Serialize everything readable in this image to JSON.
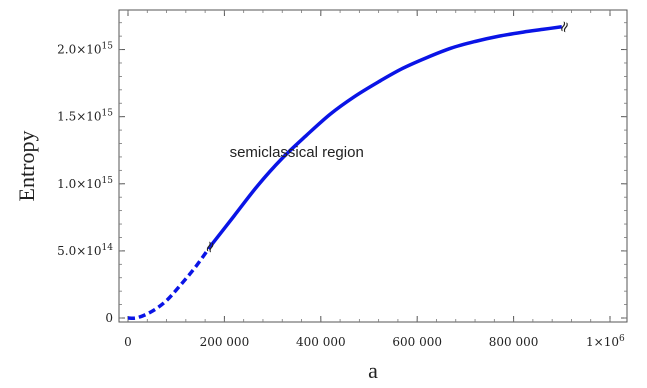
{
  "chart_data": {
    "type": "line",
    "title": "",
    "xlabel": "a",
    "ylabel": "Entropy",
    "xlim": [
      0,
      1000000
    ],
    "ylim": [
      0,
      2250000000000000.0
    ],
    "x_ticks": [
      {
        "value": 0,
        "label": "0"
      },
      {
        "value": 200000,
        "label": "200 000"
      },
      {
        "value": 400000,
        "label": "400 000"
      },
      {
        "value": 600000,
        "label": "600 000"
      },
      {
        "value": 800000,
        "label": "800 000"
      },
      {
        "value": 1000000,
        "label": "1×10",
        "exp": "6"
      }
    ],
    "y_ticks": [
      {
        "value": 0,
        "label": "0"
      },
      {
        "value": 500000000000000.0,
        "label": "5.0×10",
        "exp": "14"
      },
      {
        "value": 1000000000000000.0,
        "label": "1.0×10",
        "exp": "15"
      },
      {
        "value": 1500000000000000.0,
        "label": "1.5×10",
        "exp": "15"
      },
      {
        "value": 2000000000000000.0,
        "label": "2.0×10",
        "exp": "15"
      }
    ],
    "grid": false,
    "series": [
      {
        "style": "dashed",
        "color": "#0a14e6",
        "x": [
          0,
          20000,
          50000,
          80000,
          110000,
          140000,
          170000
        ],
        "y": [
          0,
          3000000000000.0,
          50000000000000.0,
          130000000000000.0,
          250000000000000.0,
          380000000000000.0,
          530000000000000.0
        ]
      },
      {
        "style": "solid",
        "color": "#0a14e6",
        "x": [
          170000,
          220000,
          270000,
          320000,
          370000,
          420000,
          470000,
          520000,
          570000,
          620000,
          670000,
          720000,
          770000,
          820000,
          860000,
          900000
        ],
        "y": [
          530000000000000.0,
          760000000000000.0,
          990000000000000.0,
          1190000000000000.0,
          1360000000000000.0,
          1520000000000000.0,
          1650000000000000.0,
          1760000000000000.0,
          1860000000000000.0,
          1940000000000000.0,
          2010000000000000.0,
          2060000000000000.0,
          2100000000000000.0,
          2130000000000000.0,
          2150000000000000.0,
          2170000000000000.0
        ]
      }
    ],
    "annotations": [
      {
        "text": "semiclassical region",
        "x": 350000,
        "y": 1200000000000000.0
      },
      {
        "text": "≈",
        "x": 170000,
        "y": 530000000000000.0
      },
      {
        "text": "≈",
        "x": 905000,
        "y": 2170000000000000.0
      }
    ]
  }
}
